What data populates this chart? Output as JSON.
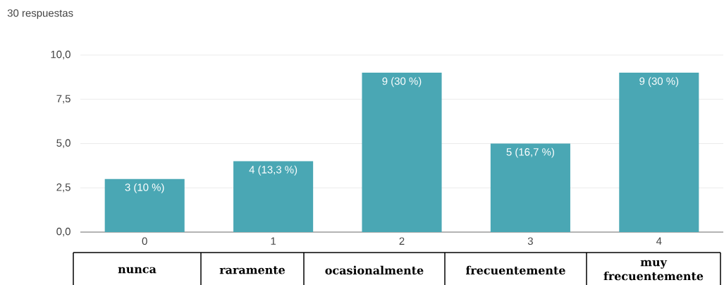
{
  "chart_data": {
    "type": "bar",
    "title": "30 respuestas",
    "categories": [
      "0",
      "1",
      "2",
      "3",
      "4"
    ],
    "values": [
      3,
      4,
      9,
      5,
      9
    ],
    "color": "#4aa7b4",
    "value_labels": [
      "3 (10 %)",
      "4 (13,3 %)",
      "9 (30 %)",
      "5 (16,7 %)",
      "9 (30 %)"
    ],
    "ylim": [
      0,
      10
    ],
    "yticks": [
      {
        "value": 0,
        "label": "0,0"
      },
      {
        "value": 2.5,
        "label": "2,5"
      },
      {
        "value": 5,
        "label": "5,0"
      },
      {
        "value": 7.5,
        "label": "7,5"
      },
      {
        "value": 10,
        "label": "10,0"
      }
    ],
    "grid": "y",
    "annotations": [
      "nunca",
      "raramente",
      "ocasionalmente",
      "frecuentemente",
      "muy frecuentemente"
    ]
  }
}
